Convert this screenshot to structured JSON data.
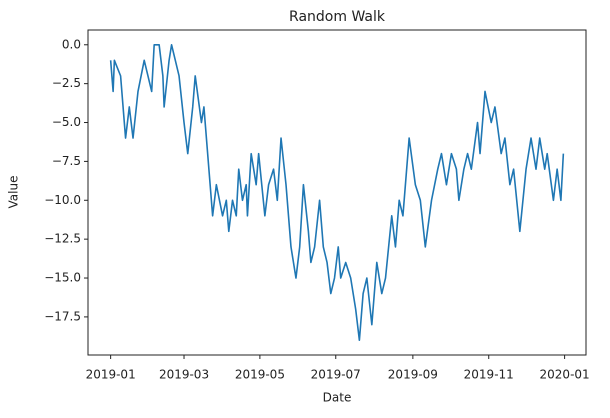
{
  "chart_data": {
    "type": "line",
    "title": "Random Walk",
    "x_label": "Date",
    "y_label": "Value",
    "x": [
      0,
      2,
      3,
      8,
      12,
      15,
      18,
      22,
      27,
      33,
      35,
      39,
      42,
      43,
      47,
      49,
      55,
      59,
      62,
      66,
      68,
      73,
      75,
      79,
      82,
      85,
      90,
      93,
      95,
      98,
      101,
      103,
      106,
      109,
      110,
      113,
      117,
      119,
      124,
      127,
      131,
      134,
      137,
      141,
      145,
      149,
      152,
      155,
      159,
      161,
      164,
      168,
      171,
      174,
      177,
      180,
      183,
      185,
      189,
      193,
      197,
      200,
      203,
      206,
      210,
      212,
      214,
      218,
      221,
      226,
      229,
      232,
      235,
      240,
      245,
      249,
      253,
      258,
      263,
      266,
      270,
      274,
      278,
      280,
      284,
      287,
      290,
      295,
      297,
      301,
      306,
      309,
      314,
      317,
      321,
      324,
      329,
      334,
      338,
      342,
      345,
      349,
      351,
      356,
      359,
      362,
      364
    ],
    "series": [
      {
        "name": "Value",
        "color": "#1f77b4",
        "values": [
          -1,
          -3,
          -1,
          -2,
          -6,
          -4,
          -6,
          -3,
          -1,
          -3,
          0,
          0,
          -2,
          -4,
          -1,
          0,
          -2,
          -5,
          -7,
          -4,
          -2,
          -5,
          -4,
          -8,
          -11,
          -9,
          -11,
          -10,
          -12,
          -10,
          -11,
          -8,
          -10,
          -9,
          -11,
          -7,
          -9,
          -7,
          -11,
          -9,
          -8,
          -10,
          -6,
          -9,
          -13,
          -15,
          -13,
          -9,
          -12,
          -14,
          -13,
          -10,
          -13,
          -14,
          -16,
          -15,
          -13,
          -15,
          -14,
          -15,
          -17,
          -19,
          -16,
          -15,
          -18,
          -16,
          -14,
          -16,
          -15,
          -11,
          -13,
          -10,
          -11,
          -6,
          -9,
          -10,
          -13,
          -10,
          -8,
          -7,
          -9,
          -7,
          -8,
          -10,
          -8,
          -7,
          -8,
          -5,
          -7,
          -3,
          -5,
          -4,
          -7,
          -6,
          -9,
          -8,
          -12,
          -8,
          -6,
          -8,
          -6,
          -8,
          -7,
          -10,
          -8,
          -10,
          -7
        ]
      }
    ],
    "xlim": [
      -18.2,
      382.2
    ],
    "xticks": [
      {
        "value": 0,
        "label": "2019-01"
      },
      {
        "value": 59,
        "label": "2019-03"
      },
      {
        "value": 120,
        "label": "2019-05"
      },
      {
        "value": 181,
        "label": "2019-07"
      },
      {
        "value": 243,
        "label": "2019-09"
      },
      {
        "value": 304,
        "label": "2019-11"
      },
      {
        "value": 365,
        "label": "2020-01"
      }
    ],
    "ylim": [
      -19.95,
      0.95
    ],
    "yticks": [
      {
        "value": 0,
        "label": "0.0"
      },
      {
        "value": -2.5,
        "label": "−2.5"
      },
      {
        "value": -5,
        "label": "−5.0"
      },
      {
        "value": -7.5,
        "label": "−7.5"
      },
      {
        "value": -10,
        "label": "−10.0"
      },
      {
        "value": -12.5,
        "label": "−12.5"
      },
      {
        "value": -15,
        "label": "−15.0"
      },
      {
        "value": -17.5,
        "label": "−17.5"
      }
    ],
    "grid": false
  }
}
